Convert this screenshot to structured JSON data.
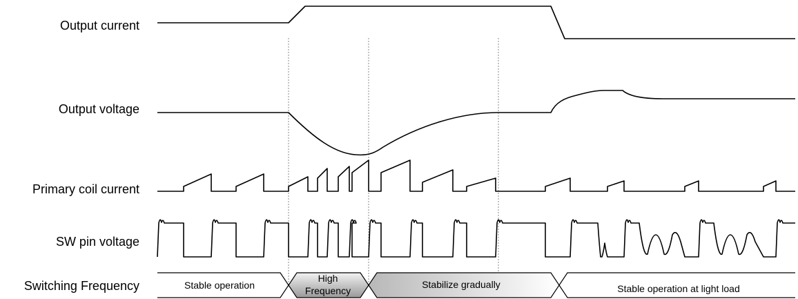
{
  "signals": {
    "output_current": "Output current",
    "output_voltage": "Output voltage",
    "primary_coil_current": "Primary coil current",
    "sw_pin_voltage": "SW pin voltage",
    "switching_frequency": "Switching Frequency"
  },
  "phases": {
    "stable": "Stable operation",
    "high_line1": "High",
    "high_line2": "Frequency",
    "stabilize": "Stabilize gradually",
    "light_load": "Stable operation at light load"
  },
  "colors": {
    "stroke": "#000000",
    "guide": "#888888",
    "high_fill_light": "#f2f2f2",
    "high_fill_dark": "#999999"
  }
}
